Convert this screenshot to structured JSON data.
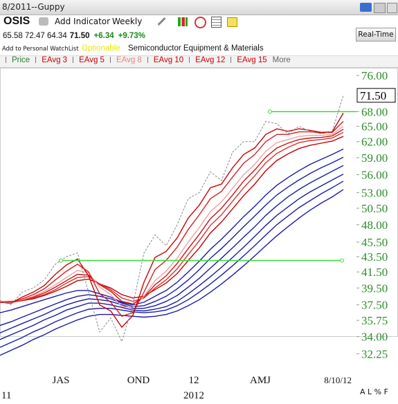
{
  "header": {
    "title": "8/2011--Guppy",
    "symbol": "OSIS",
    "add_indicator": "Add Indicator",
    "period": "Weekly",
    "quote": {
      "ohl": "65.58 72.47 64.34",
      "last": "71.50",
      "change": "+6.34",
      "change_pct": "+9.73%"
    },
    "watchlist": "Add to Personal WatchList",
    "optionable": "Optionable",
    "industry": "Semiconductor Equipment & Materials",
    "realtime": "Real-Time",
    "footer": "A L % F"
  },
  "chart_data": {
    "type": "line",
    "log_scale": true,
    "categories": [
      null,
      null,
      null,
      null,
      null,
      "JAS",
      null,
      null,
      null,
      null,
      null,
      null,
      "OND",
      null,
      null,
      null,
      null,
      "12",
      null,
      null,
      null,
      null,
      null,
      "AMJ",
      null,
      null,
      null,
      null,
      null,
      null,
      null,
      "8/10/12"
    ],
    "year_categories": [
      "11",
      null,
      null,
      null,
      null,
      null,
      null,
      null,
      null,
      null,
      null,
      null,
      null,
      null,
      null,
      null,
      null,
      "2012",
      null,
      null,
      null,
      null,
      null,
      null,
      null,
      null,
      null,
      null,
      null,
      null,
      null,
      null
    ],
    "ylim": [
      31,
      78
    ],
    "yticks": [
      {
        "value": 76,
        "label": "76.00"
      },
      {
        "value": 68,
        "label": "68.00"
      },
      {
        "value": 65,
        "label": "65.00"
      },
      {
        "value": 62,
        "label": "62.00"
      },
      {
        "value": 59,
        "label": "59.00"
      },
      {
        "value": 56,
        "label": "56.00"
      },
      {
        "value": 53,
        "label": "53.00"
      },
      {
        "value": 50.5,
        "label": "50.50"
      },
      {
        "value": 48,
        "label": "48.00"
      },
      {
        "value": 45.5,
        "label": "45.50"
      },
      {
        "value": 43.5,
        "label": "43.50"
      },
      {
        "value": 41.5,
        "label": "41.50"
      },
      {
        "value": 39.5,
        "label": "39.50"
      },
      {
        "value": 37.5,
        "label": "37.50"
      },
      {
        "value": 35.75,
        "label": "35.75"
      },
      {
        "value": 34,
        "label": "34.00"
      },
      {
        "value": 32.25,
        "label": "32.25"
      }
    ],
    "last_price": {
      "value": 71.5,
      "label": "71.50"
    },
    "hlines": [
      43.0,
      68.0
    ],
    "hline_color": "#33dd33",
    "legend_more": "More",
    "series": [
      {
        "name": "Price",
        "color": "#888888",
        "dash": true,
        "legend_color": "#2a7a2a",
        "values": [
          38.0,
          37.5,
          39.0,
          39.5,
          40.5,
          42.5,
          43.5,
          44.0,
          39.0,
          34.5,
          36.0,
          33.5,
          37.5,
          44.0,
          46.5,
          45.0,
          48.0,
          52.0,
          53.0,
          56.5,
          55.0,
          60.0,
          62.0,
          62.0,
          66.0,
          65.5,
          63.5,
          65.0,
          64.0,
          63.5,
          64.0,
          71.5
        ]
      },
      {
        "name": "EAvg 3",
        "color": "#cc0000",
        "legend_color": "#cc0000",
        "values": [
          37.8,
          37.7,
          38.4,
          39.0,
          39.8,
          41.2,
          42.4,
          43.2,
          41.0,
          37.5,
          36.8,
          35.0,
          36.3,
          40.2,
          43.4,
          44.2,
          46.1,
          49.0,
          51.0,
          53.8,
          54.4,
          57.2,
          59.6,
          60.8,
          63.4,
          64.5,
          64.0,
          64.5,
          64.2,
          63.8,
          63.9,
          67.7
        ]
      },
      {
        "name": "EAvg 5",
        "color": "#d42020",
        "legend_color": "#cc0000",
        "values": [
          37.8,
          37.7,
          38.2,
          38.7,
          39.4,
          40.5,
          41.6,
          42.5,
          41.5,
          38.8,
          37.8,
          36.2,
          36.6,
          39.0,
          41.8,
          43.0,
          44.8,
          47.3,
          49.5,
          52.0,
          53.2,
          55.6,
          58.0,
          59.6,
          62.0,
          63.4,
          63.4,
          63.9,
          63.9,
          63.7,
          63.8,
          66.0
        ]
      },
      {
        "name": "EAvg 8",
        "color": "#f0a0a0",
        "legend_color": "#f08080",
        "values": [
          37.9,
          37.8,
          38.1,
          38.5,
          39.1,
          39.9,
          40.8,
          41.7,
          41.4,
          39.6,
          38.7,
          37.3,
          37.2,
          38.5,
          40.4,
          41.6,
          43.3,
          45.5,
          47.6,
          50.0,
          51.5,
          53.7,
          56.0,
          57.8,
          60.2,
          61.8,
          62.4,
          63.0,
          63.2,
          63.2,
          63.4,
          65.0
        ]
      },
      {
        "name": "EAvg 10",
        "color": "#cc1010",
        "legend_color": "#cc0000",
        "values": [
          37.9,
          37.8,
          38.0,
          38.4,
          38.9,
          39.6,
          40.4,
          41.2,
          41.1,
          39.9,
          39.1,
          37.9,
          37.6,
          38.4,
          39.9,
          41.0,
          42.6,
          44.6,
          46.6,
          48.9,
          50.5,
          52.6,
          54.9,
          56.8,
          59.1,
          60.8,
          61.7,
          62.4,
          62.7,
          62.8,
          63.1,
          64.4
        ]
      },
      {
        "name": "EAvg 12",
        "color": "#d83030",
        "legend_color": "#cc0000",
        "values": [
          37.9,
          37.8,
          38.0,
          38.3,
          38.7,
          39.3,
          40.1,
          40.8,
          40.9,
          40.0,
          39.3,
          38.3,
          37.9,
          38.3,
          39.5,
          40.5,
          41.9,
          43.8,
          45.7,
          47.9,
          49.5,
          51.6,
          53.8,
          55.8,
          58.1,
          59.8,
          60.9,
          61.8,
          62.2,
          62.4,
          62.7,
          63.8
        ]
      },
      {
        "name": "EAvg 15",
        "color": "#c00000",
        "legend_color": "#cc0000",
        "values": [
          37.9,
          37.9,
          38.0,
          38.2,
          38.6,
          39.1,
          39.7,
          40.4,
          40.6,
          40.0,
          39.5,
          38.7,
          38.3,
          38.5,
          39.3,
          40.1,
          41.3,
          43.0,
          44.7,
          46.8,
          48.4,
          50.4,
          52.5,
          54.4,
          56.7,
          58.5,
          59.7,
          60.7,
          61.3,
          61.7,
          62.1,
          63.0
        ]
      },
      {
        "color": "#1a1aa8",
        "values": [
          36.6,
          36.9,
          37.3,
          37.7,
          38.1,
          38.5,
          38.9,
          39.2,
          39.2,
          38.8,
          38.4,
          37.8,
          37.5,
          37.8,
          38.5,
          39.2,
          40.2,
          41.5,
          42.9,
          44.5,
          45.9,
          47.5,
          49.2,
          50.8,
          52.6,
          54.2,
          55.5,
          56.7,
          57.8,
          58.7,
          59.6,
          60.6
        ]
      },
      {
        "color": "#1a1aa8",
        "values": [
          35.2,
          35.6,
          36.1,
          36.6,
          37.1,
          37.6,
          38.1,
          38.5,
          38.7,
          38.5,
          38.2,
          37.7,
          37.3,
          37.4,
          37.9,
          38.5,
          39.4,
          40.5,
          41.8,
          43.3,
          44.6,
          46.1,
          47.7,
          49.3,
          51.0,
          52.6,
          53.9,
          55.1,
          56.2,
          57.2,
          58.1,
          59.1
        ]
      },
      {
        "color": "#1a1aa8",
        "values": [
          34.4,
          34.9,
          35.4,
          35.9,
          36.4,
          37.0,
          37.5,
          37.9,
          38.2,
          38.1,
          37.9,
          37.5,
          37.1,
          37.1,
          37.4,
          37.9,
          38.6,
          39.6,
          40.7,
          42.0,
          43.3,
          44.7,
          46.2,
          47.7,
          49.4,
          50.9,
          52.3,
          53.5,
          54.6,
          55.6,
          56.6,
          57.6
        ]
      },
      {
        "color": "#1a1aa8",
        "values": [
          33.7,
          34.2,
          34.7,
          35.2,
          35.8,
          36.3,
          36.9,
          37.3,
          37.7,
          37.7,
          37.5,
          37.2,
          36.9,
          36.8,
          37.0,
          37.3,
          37.9,
          38.8,
          39.8,
          40.9,
          42.1,
          43.4,
          44.8,
          46.3,
          47.9,
          49.4,
          50.7,
          52.0,
          53.1,
          54.1,
          55.1,
          56.1
        ]
      },
      {
        "color": "#1a1aa8",
        "values": [
          32.9,
          33.4,
          33.9,
          34.5,
          35.0,
          35.6,
          36.1,
          36.6,
          37.0,
          37.1,
          37.1,
          36.9,
          36.7,
          36.6,
          36.7,
          36.9,
          37.4,
          38.1,
          39.0,
          40.0,
          41.1,
          42.3,
          43.6,
          45.0,
          46.5,
          48.0,
          49.3,
          50.6,
          51.7,
          52.8,
          53.8,
          54.9
        ]
      },
      {
        "color": "#1a1aa8",
        "values": [
          32.1,
          32.6,
          33.1,
          33.7,
          34.2,
          34.8,
          35.3,
          35.8,
          36.2,
          36.4,
          36.4,
          36.3,
          36.2,
          36.1,
          36.2,
          36.4,
          36.8,
          37.4,
          38.1,
          39.0,
          40.0,
          41.1,
          42.3,
          43.6,
          45.0,
          46.4,
          47.7,
          49.0,
          50.2,
          51.3,
          52.3,
          53.5
        ]
      }
    ]
  }
}
